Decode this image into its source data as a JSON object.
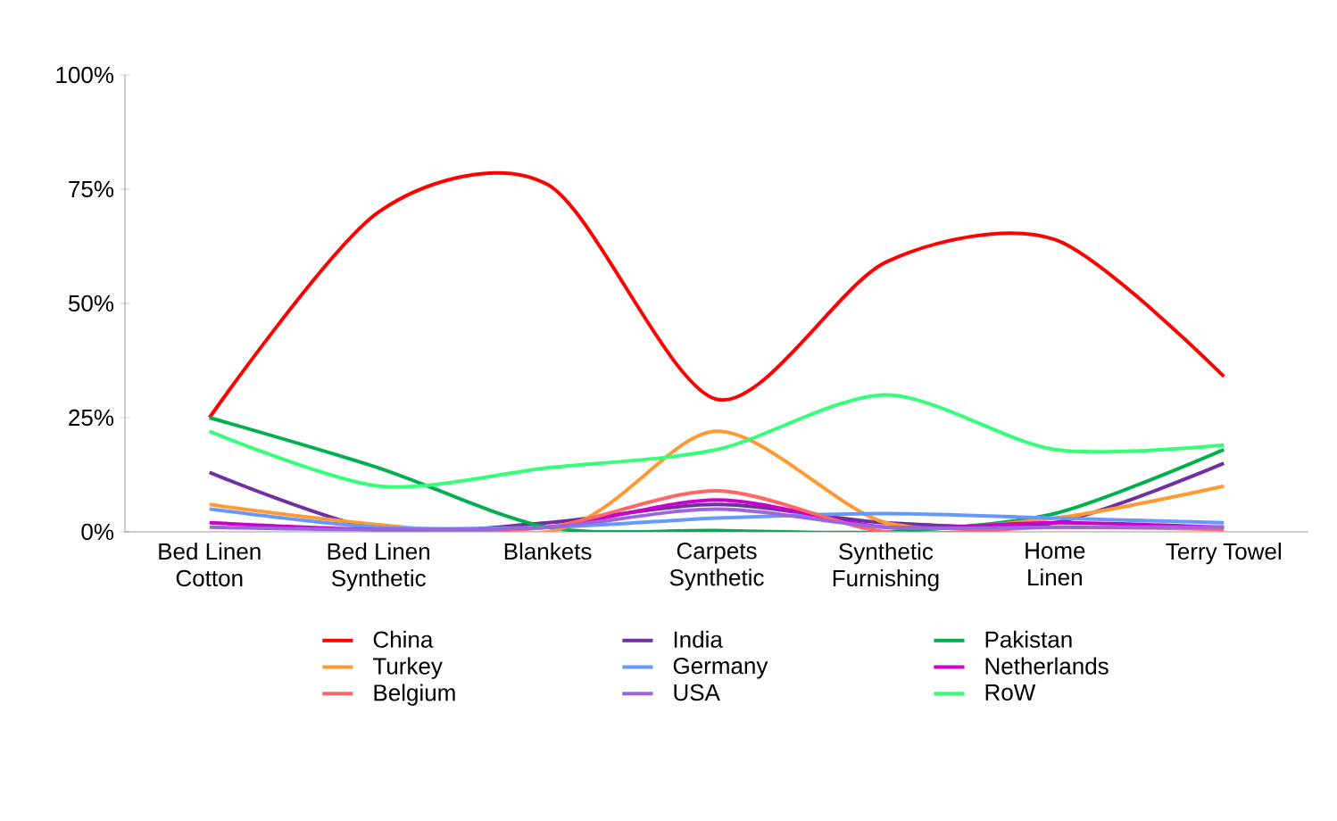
{
  "chart_data": {
    "type": "line",
    "categories": [
      "Bed Linen Cotton",
      "Bed Linen Synthetic",
      "Blankets",
      "Carpets Synthetic",
      "Synthetic Furnishing",
      "Home Linen",
      "Terry Towel"
    ],
    "series": [
      {
        "name": "China",
        "color": "#ff0000",
        "values": [
          25,
          70,
          76,
          29,
          59,
          64,
          34
        ]
      },
      {
        "name": "India",
        "color": "#7030a0",
        "values": [
          13,
          0.5,
          2,
          6,
          2,
          2,
          15
        ]
      },
      {
        "name": "Pakistan",
        "color": "#00b050",
        "values": [
          25,
          14,
          1,
          0.3,
          0,
          4,
          18
        ]
      },
      {
        "name": "Turkey",
        "color": "#ff9933",
        "values": [
          6,
          null,
          0,
          22,
          2,
          3,
          10
        ]
      },
      {
        "name": "Germany",
        "color": "#6699ff",
        "values": [
          5,
          1,
          1,
          3,
          4,
          3,
          2
        ]
      },
      {
        "name": "Netherlands",
        "color": "#cc00cc",
        "values": [
          2,
          0.5,
          1,
          7,
          1,
          2,
          1
        ]
      },
      {
        "name": "Belgium",
        "color": "#ff6666",
        "values": [
          null,
          0,
          1,
          9,
          0,
          1,
          0.5
        ]
      },
      {
        "name": "USA",
        "color": "#9966dd",
        "values": [
          1,
          0.5,
          1,
          5,
          1,
          1,
          1
        ]
      },
      {
        "name": "RoW",
        "color": "#33ff77",
        "values": [
          22,
          10,
          14,
          18,
          30,
          18,
          19
        ]
      }
    ],
    "ylim": [
      0,
      100
    ],
    "yticks": [
      {
        "value": 0,
        "label": "0%"
      },
      {
        "value": 25,
        "label": "25%"
      },
      {
        "value": 50,
        "label": "50%"
      },
      {
        "value": 75,
        "label": "75%"
      },
      {
        "value": 100,
        "label": "100%"
      }
    ],
    "grid": false,
    "legend": "bottom",
    "marker": "none",
    "line_style": "solid"
  }
}
